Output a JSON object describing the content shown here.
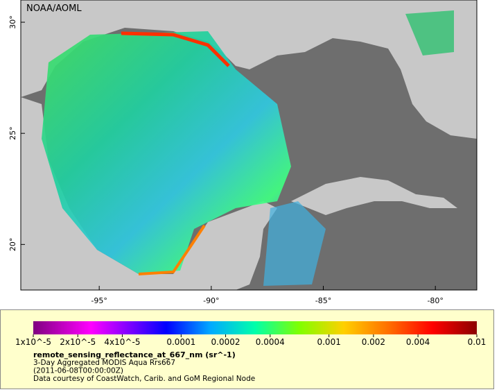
{
  "map": {
    "credit": "NOAA/AOML",
    "lon_range": [
      -98.5,
      -78.15
    ],
    "lat_range": [
      17.95,
      31
    ],
    "lon_ticks": [
      {
        "value": -95,
        "label": "-95°"
      },
      {
        "value": -90,
        "label": "-90°"
      },
      {
        "value": -85,
        "label": "-85°"
      },
      {
        "value": -80,
        "label": "-80°"
      }
    ],
    "lat_ticks": [
      {
        "value": 20,
        "label": "20°"
      },
      {
        "value": 25,
        "label": "25°"
      },
      {
        "value": 30,
        "label": "30°"
      }
    ]
  },
  "legend": {
    "scale": "log",
    "range": [
      1e-05,
      0.01
    ],
    "ticks": [
      {
        "value": 1e-05,
        "label": "1x10^-5"
      },
      {
        "value": 2e-05,
        "label": "2x10^-5"
      },
      {
        "value": 4e-05,
        "label": "4x10^-5"
      },
      0.0001,
      0.0002,
      0.0004,
      0.001,
      0.002,
      0.004,
      0.01
    ],
    "title": "remote_sensing_reflectance_at_667_nm (sr^-1)",
    "lines": [
      "3-Day Aggregated MODIS Aqua Rrs667",
      "(2011-06-08T00:00:00Z)",
      "Data courtesy of CoastWatch, Carib. and GoM Regional Node"
    ]
  }
}
